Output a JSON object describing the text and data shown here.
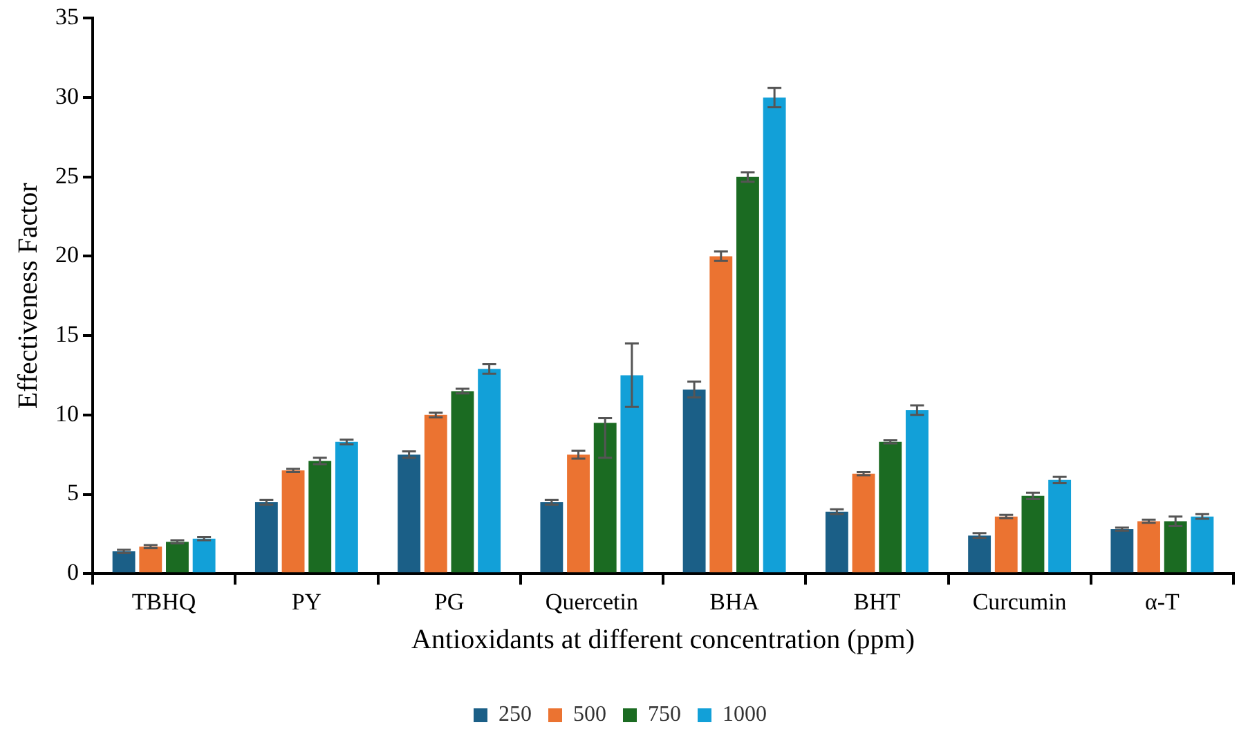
{
  "chart_data": {
    "type": "bar",
    "xlabel": "Antioxidants at different concentration (ppm)",
    "ylabel": "Effectiveness Factor",
    "categories": [
      "TBHQ",
      "PY",
      "PG",
      "Quercetin",
      "BHA",
      "BHT",
      "Curcumin",
      "α-T"
    ],
    "series": [
      {
        "name": "250",
        "color": "#1b5f87",
        "values": [
          1.4,
          4.5,
          7.5,
          4.5,
          11.6,
          3.9,
          2.4,
          2.8
        ],
        "errors": [
          0.1,
          0.15,
          0.2,
          0.15,
          0.5,
          0.15,
          0.15,
          0.1
        ]
      },
      {
        "name": "500",
        "color": "#eb7331",
        "values": [
          1.7,
          6.5,
          10,
          7.5,
          20,
          6.3,
          3.6,
          3.3
        ],
        "errors": [
          0.1,
          0.1,
          0.15,
          0.25,
          0.3,
          0.1,
          0.1,
          0.1
        ]
      },
      {
        "name": "750",
        "color": "#1b6b22",
        "values": [
          2,
          7.1,
          11.5,
          9.5,
          25,
          8.3,
          4.9,
          3.3
        ],
        "errors": [
          0.1,
          0.2,
          0.15,
          [
            7.3,
            9.8
          ],
          0.3,
          0.1,
          0.2,
          0.3
        ]
      },
      {
        "name": "1000",
        "color": "#12a0d8",
        "values": [
          2.2,
          8.3,
          12.9,
          12.5,
          30,
          10.3,
          5.9,
          3.6
        ],
        "errors": [
          0.1,
          0.15,
          0.3,
          2,
          0.6,
          0.3,
          0.2,
          0.15
        ]
      }
    ],
    "ylim": [
      0,
      35
    ],
    "yticks": [
      0,
      5,
      10,
      15,
      20,
      25,
      30,
      35
    ],
    "grid": false,
    "legend": "bottom"
  }
}
